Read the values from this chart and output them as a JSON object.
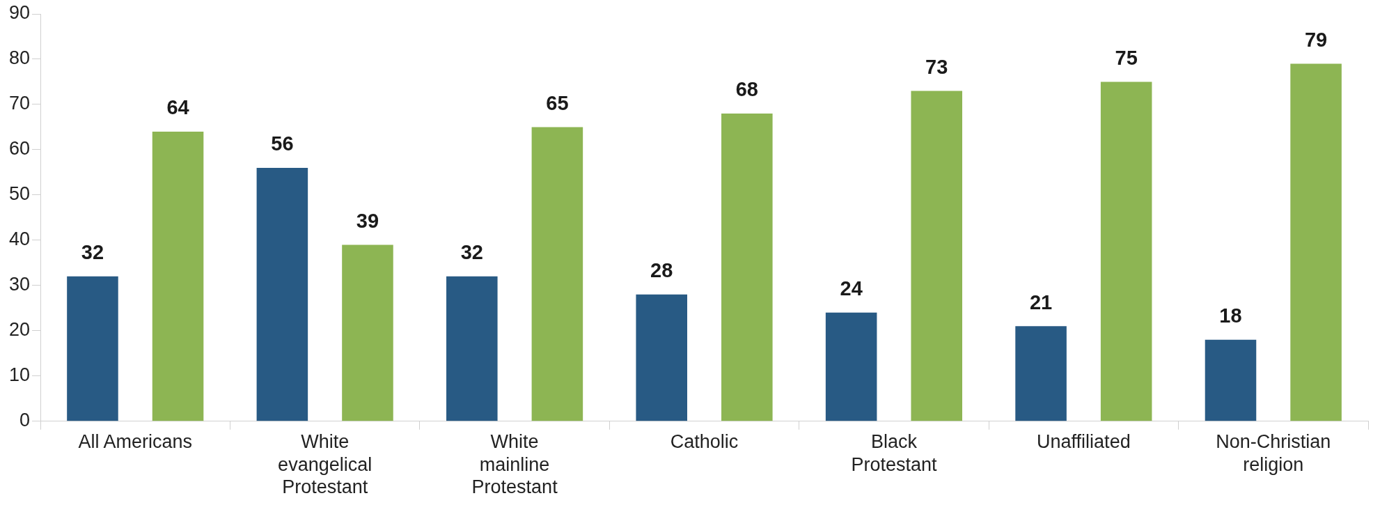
{
  "chart_data": {
    "type": "bar",
    "categories": [
      "All Americans",
      "White evangelical Protestant",
      "White mainline Protestant",
      "Catholic",
      "Black Protestant",
      "Unaffiliated",
      "Non-Christian religion"
    ],
    "series": [
      {
        "color": "#285a84",
        "values": [
          32,
          56,
          32,
          28,
          24,
          21,
          18
        ]
      },
      {
        "color": "#8db553",
        "values": [
          64,
          39,
          65,
          68,
          73,
          75,
          79
        ]
      }
    ],
    "ylim": [
      0,
      90
    ],
    "yticks": [
      0,
      10,
      20,
      30,
      40,
      50,
      60,
      70,
      80,
      90
    ],
    "grid": false,
    "legend": false,
    "data_labels": true
  }
}
